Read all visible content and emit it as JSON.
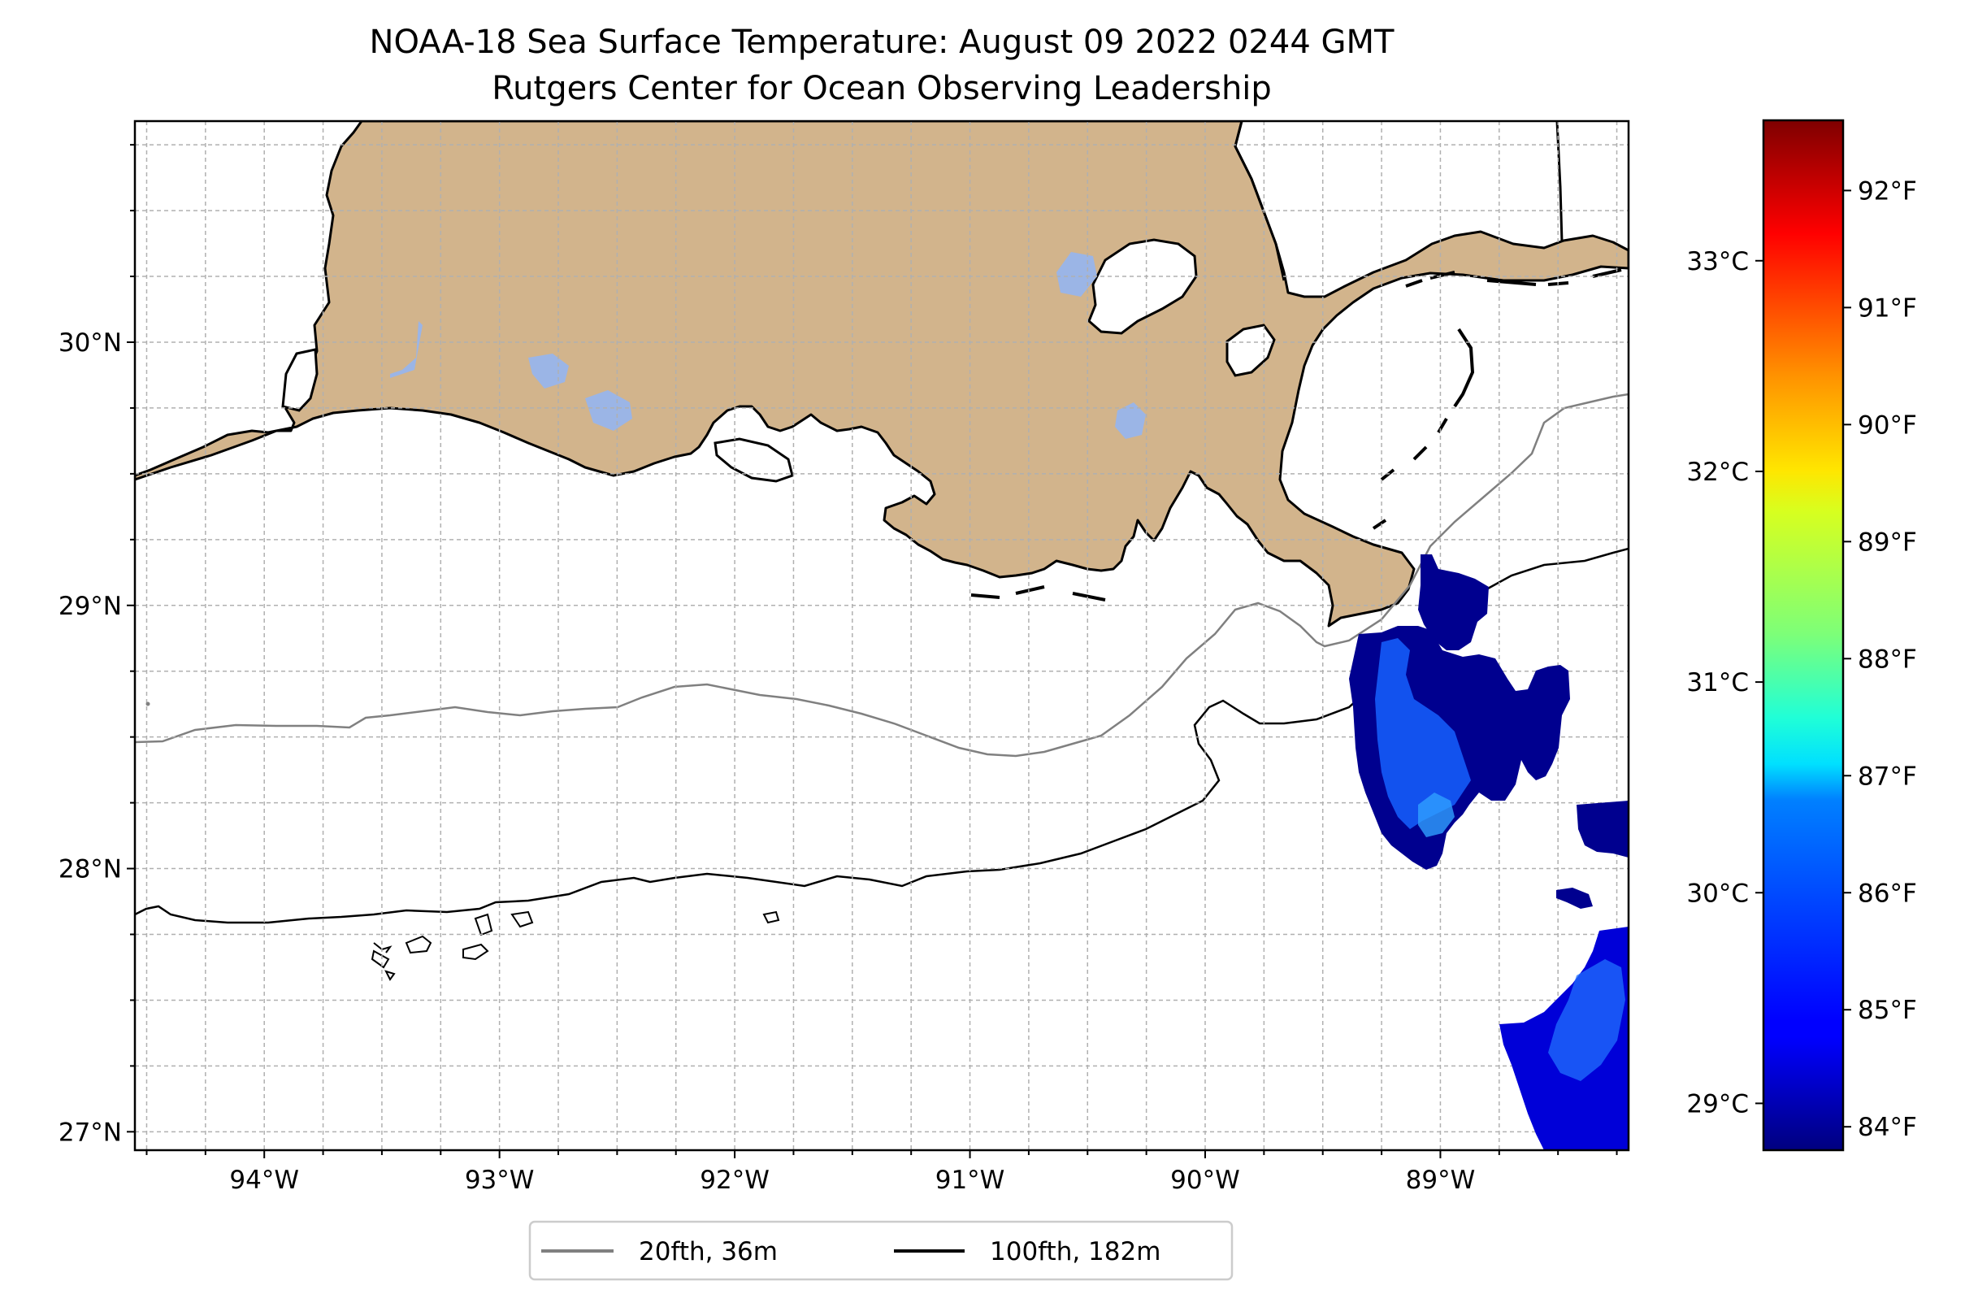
{
  "title": {
    "line1": "NOAA-18 Sea Surface Temperature: August 09 2022 0244 GMT",
    "line2": "Rutgers Center for Ocean Observing Leadership"
  },
  "map": {
    "lon_range": [
      -94.55,
      -88.2
    ],
    "lat_range": [
      26.93,
      30.84
    ],
    "lon_ticks": [
      {
        "value": -94,
        "label": "94°W"
      },
      {
        "value": -93,
        "label": "93°W"
      },
      {
        "value": -92,
        "label": "92°W"
      },
      {
        "value": -91,
        "label": "91°W"
      },
      {
        "value": -90,
        "label": "90°W"
      },
      {
        "value": -89,
        "label": "89°W"
      }
    ],
    "lat_ticks": [
      {
        "value": 27,
        "label": "27°N"
      },
      {
        "value": 28,
        "label": "28°N"
      },
      {
        "value": 29,
        "label": "29°N"
      },
      {
        "value": 30,
        "label": "30°N"
      }
    ],
    "grid": true,
    "land_color": "#d2b48c",
    "lake_color": "#9bb5e6"
  },
  "legend": {
    "placement": "bottom-center",
    "items": [
      {
        "label": "20fth, 36m",
        "color": "#808080"
      },
      {
        "label": "100fth, 182m",
        "color": "#000000"
      }
    ]
  },
  "colorbar": {
    "colormap": "jet",
    "celsius_ticks": [
      {
        "value": 29,
        "label": "29°C"
      },
      {
        "value": 30,
        "label": "30°C"
      },
      {
        "value": 31,
        "label": "31°C"
      },
      {
        "value": 32,
        "label": "32°C"
      },
      {
        "value": 33,
        "label": "33°C"
      }
    ],
    "fahrenheit_ticks": [
      {
        "value": 84,
        "label": "84°F"
      },
      {
        "value": 85,
        "label": "85°F"
      },
      {
        "value": 86,
        "label": "86°F"
      },
      {
        "value": 87,
        "label": "87°F"
      },
      {
        "value": 88,
        "label": "88°F"
      },
      {
        "value": 89,
        "label": "89°F"
      },
      {
        "value": 90,
        "label": "90°F"
      },
      {
        "value": 91,
        "label": "91°F"
      },
      {
        "value": 92,
        "label": "92°F"
      }
    ]
  }
}
